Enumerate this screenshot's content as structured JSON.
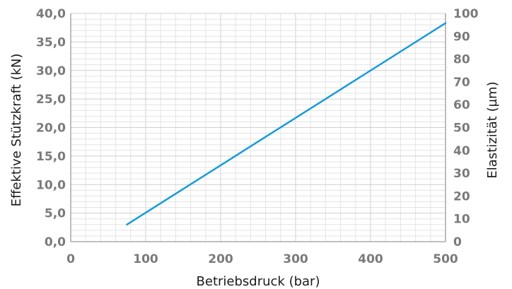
{
  "chart_data": {
    "type": "line",
    "title": "",
    "xlabel": "Betriebsdruck (bar)",
    "ylabel": "Effektive Stützkraft   (kN)",
    "y2label": "Elastizität (µm)",
    "xlim": [
      0,
      500
    ],
    "ylim": [
      0,
      40
    ],
    "y2lim": [
      0,
      100
    ],
    "x_ticks": [
      "0",
      "100",
      "200",
      "300",
      "400",
      "500"
    ],
    "y_ticks": [
      "0,0",
      "5,0",
      "10,0",
      "15,0",
      "20,0",
      "25,0",
      "30,0",
      "35,0",
      "40,0"
    ],
    "y2_ticks": [
      "0",
      "10",
      "20",
      "30",
      "40",
      "50",
      "60",
      "70",
      "80",
      "90",
      "100"
    ],
    "grid": true,
    "line_color": "#1a9bd7",
    "series": [
      {
        "x": [
          75,
          500
        ],
        "y": [
          3.0,
          38.3
        ]
      }
    ]
  }
}
